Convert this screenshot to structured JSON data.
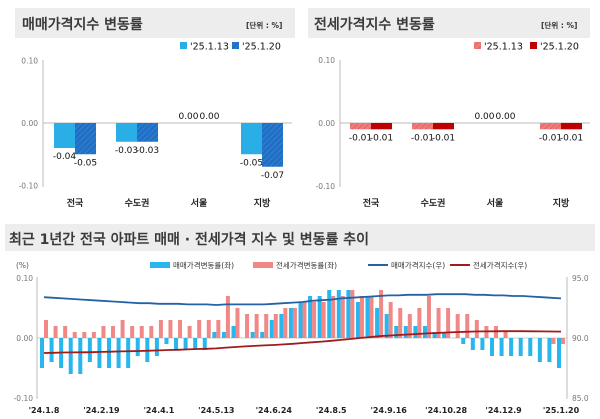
{
  "top_charts": [
    {
      "title": "매매가격지수 변동률",
      "unit": "[단위 : %]",
      "chart_data": {
        "type": "bar",
        "categories": [
          "전국",
          "수도권",
          "서울",
          "지방"
        ],
        "series": [
          {
            "name": "'25.1.13",
            "values": [
              -0.04,
              -0.03,
              0.0,
              -0.05
            ],
            "color": "#29aee6"
          },
          {
            "name": "'25.1.20",
            "values": [
              -0.05,
              -0.03,
              0.0,
              -0.07
            ],
            "color": "#1f6fc5"
          }
        ],
        "yticks": [
          "0.10",
          "0.00",
          "-0.10"
        ],
        "ylim": [
          -0.1,
          0.1
        ],
        "legend": "top-right",
        "grid": false
      }
    },
    {
      "title": "전세가격지수 변동률",
      "unit": "[단위 : %]",
      "chart_data": {
        "type": "bar",
        "categories": [
          "전국",
          "수도권",
          "서울",
          "지방"
        ],
        "series": [
          {
            "name": "'25.1.13",
            "values": [
              -0.01,
              -0.01,
              0.0,
              -0.01
            ],
            "color": "#f07b7b"
          },
          {
            "name": "'25.1.20",
            "values": [
              -0.01,
              -0.01,
              0.0,
              -0.01
            ],
            "color": "#c00000"
          }
        ],
        "yticks": [
          "0.10",
          "0.00",
          "-0.10"
        ],
        "ylim": [
          -0.1,
          0.1
        ],
        "legend": "top-right",
        "grid": false
      }
    }
  ],
  "bottom_chart": {
    "title": "최근 1년간 전국 아파트 매매 · 전세가격 지수 및 변동률 추이",
    "chart_data": {
      "type": "bar+line",
      "left_axis_label": "(%)",
      "ylim_left": [
        -0.1,
        0.1
      ],
      "yticks_left": [
        "0.10",
        "0.00",
        "-0.10"
      ],
      "ylim_right": [
        85.0,
        95.0
      ],
      "yticks_right": [
        "95.0",
        "90.0",
        "85.0"
      ],
      "xtick_labels": [
        "'24.1.8",
        "'24.2.19",
        "'24.4.1",
        "'24.5.13",
        "'24.6.24",
        "'24.8.5",
        "'24.9.16",
        "'24.10.28",
        "'24.12.9",
        "'25.1.20"
      ],
      "legend": "top",
      "grid": false,
      "series": [
        {
          "name": "매매가격변동률(좌)",
          "type": "bar",
          "axis": "left",
          "color": "#29b6ec",
          "values": [
            -0.05,
            -0.04,
            -0.05,
            -0.06,
            -0.06,
            -0.04,
            -0.05,
            -0.05,
            -0.05,
            -0.05,
            -0.03,
            -0.04,
            -0.03,
            -0.01,
            -0.02,
            -0.02,
            -0.02,
            -0.02,
            0.01,
            0.01,
            0.02,
            0.0,
            0.01,
            0.01,
            0.03,
            0.04,
            0.05,
            0.06,
            0.07,
            0.07,
            0.08,
            0.08,
            0.08,
            0.06,
            0.07,
            0.05,
            0.04,
            0.02,
            0.02,
            0.02,
            0.02,
            0.01,
            0.01,
            0.0,
            -0.01,
            -0.02,
            -0.02,
            -0.03,
            -0.03,
            -0.03,
            -0.03,
            -0.03,
            -0.04,
            -0.04,
            -0.05
          ]
        },
        {
          "name": "전세가격변동률(좌)",
          "type": "bar",
          "axis": "left",
          "color": "#f08888",
          "values": [
            0.03,
            0.02,
            0.02,
            0.01,
            0.01,
            0.01,
            0.02,
            0.02,
            0.03,
            0.02,
            0.02,
            0.02,
            0.03,
            0.03,
            0.03,
            0.02,
            0.03,
            0.03,
            0.03,
            0.07,
            0.05,
            0.04,
            0.04,
            0.04,
            0.04,
            0.05,
            0.05,
            0.06,
            0.06,
            0.06,
            0.07,
            0.07,
            0.08,
            0.07,
            0.07,
            0.08,
            0.06,
            0.05,
            0.04,
            0.05,
            0.07,
            0.05,
            0.05,
            0.04,
            0.04,
            0.03,
            0.02,
            0.02,
            0.01,
            0.0,
            0.0,
            0.0,
            0.0,
            -0.01,
            -0.01
          ]
        },
        {
          "name": "매매가격지수(우)",
          "type": "line",
          "axis": "right",
          "color": "#2462a8",
          "values": [
            93.4,
            93.35,
            93.3,
            93.25,
            93.2,
            93.15,
            93.1,
            93.05,
            93.0,
            92.95,
            92.9,
            92.9,
            92.85,
            92.85,
            92.85,
            92.8,
            92.8,
            92.8,
            92.75,
            92.8,
            92.8,
            92.8,
            92.8,
            92.8,
            92.85,
            92.9,
            92.95,
            93.0,
            93.1,
            93.15,
            93.2,
            93.3,
            93.35,
            93.4,
            93.45,
            93.5,
            93.55,
            93.55,
            93.6,
            93.6,
            93.6,
            93.65,
            93.65,
            93.65,
            93.65,
            93.6,
            93.6,
            93.55,
            93.55,
            93.5,
            93.5,
            93.45,
            93.4,
            93.35,
            93.3
          ]
        },
        {
          "name": "전세가격지수(우)",
          "type": "line",
          "axis": "right",
          "color": "#a01c1c",
          "values": [
            88.75,
            88.77,
            88.79,
            88.8,
            88.81,
            88.82,
            88.84,
            88.86,
            88.88,
            88.9,
            88.92,
            88.94,
            88.97,
            89.0,
            89.02,
            89.05,
            89.08,
            89.1,
            89.13,
            89.2,
            89.25,
            89.3,
            89.34,
            89.38,
            89.42,
            89.47,
            89.52,
            89.58,
            89.64,
            89.7,
            89.77,
            89.84,
            89.92,
            90.0,
            90.07,
            90.15,
            90.2,
            90.25,
            90.29,
            90.33,
            90.38,
            90.42,
            90.46,
            90.49,
            90.52,
            90.54,
            90.55,
            90.56,
            90.57,
            90.57,
            90.57,
            90.56,
            90.55,
            90.54,
            90.53
          ]
        }
      ]
    }
  }
}
